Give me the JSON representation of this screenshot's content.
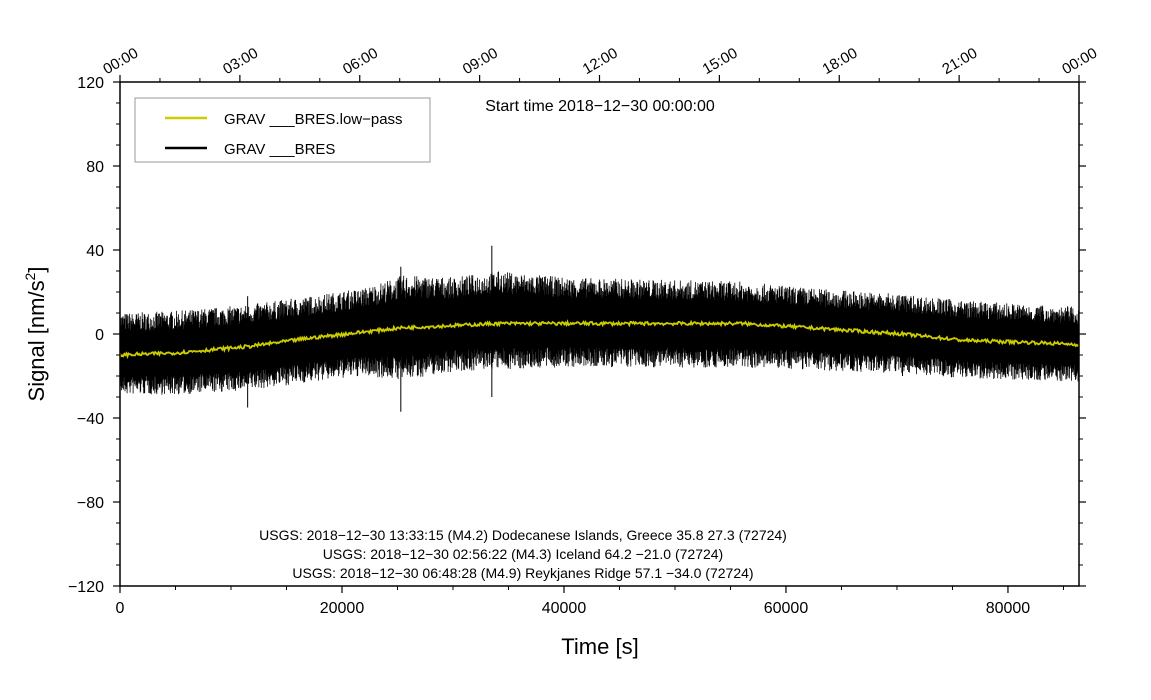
{
  "chart_data": {
    "type": "line",
    "title": "Start time 2018−12−30 00:00:00",
    "xlabel": "Time [s]",
    "ylabel_main": "Signal [nm/s",
    "ylabel_sup": "2",
    "ylabel_end": "]",
    "xlim": [
      0,
      86400
    ],
    "ylim": [
      -120,
      120
    ],
    "x_ticks": [
      0,
      20000,
      40000,
      60000,
      80000
    ],
    "x_tick_labels": [
      "0",
      "20000",
      "40000",
      "60000",
      "80000"
    ],
    "y_ticks": [
      -120,
      -80,
      -40,
      0,
      40,
      80,
      120
    ],
    "y_tick_labels": [
      "−120",
      "−80",
      "−40",
      "0",
      "40",
      "80",
      "120"
    ],
    "top_ticks_seconds": [
      0,
      10800,
      21600,
      32400,
      43200,
      54000,
      64800,
      75600,
      86400
    ],
    "top_tick_labels": [
      "00:00",
      "03:00",
      "06:00",
      "09:00",
      "12:00",
      "15:00",
      "18:00",
      "21:00",
      "00:00"
    ],
    "legend": [
      {
        "label": "GRAV ___BRES.low−pass",
        "color": "#cccc00"
      },
      {
        "label": "GRAV ___BRES",
        "color": "#000000"
      }
    ],
    "legend_position": "top-left",
    "series": [
      {
        "name": "GRAV ___BRES.low−pass",
        "color": "#cccc00",
        "x": [
          0,
          5000,
          11500,
          17000,
          22000,
          25500,
          30000,
          34000,
          40000,
          48000,
          56000,
          62000,
          70500,
          76000,
          82000,
          86400
        ],
        "y": [
          -10,
          -9,
          -6,
          -2,
          1,
          3,
          4,
          5,
          5,
          5,
          5,
          3,
          0,
          -3,
          -4,
          -5
        ]
      },
      {
        "name": "GRAV ___BRES",
        "color": "#000000",
        "x": [
          0,
          5000,
          11500,
          17000,
          22000,
          25500,
          30000,
          34000,
          40000,
          48000,
          56000,
          62000,
          70500,
          76000,
          82000,
          86400
        ],
        "y_upper": [
          10,
          11,
          14,
          18,
          22,
          28,
          27,
          30,
          27,
          26,
          25,
          22,
          19,
          16,
          14,
          13
        ],
        "y_lower": [
          -29,
          -29,
          -27,
          -23,
          -20,
          -22,
          -18,
          -17,
          -16,
          -16,
          -16,
          -17,
          -19,
          -21,
          -22,
          -23
        ]
      }
    ],
    "spikes": [
      {
        "x": 11500,
        "min": -35,
        "max": 18
      },
      {
        "x": 25300,
        "min": -37,
        "max": 32
      },
      {
        "x": 33500,
        "min": -30,
        "max": 42
      },
      {
        "x": 70500,
        "min": -20,
        "max": 18
      }
    ]
  },
  "annotations": [
    "USGS: 2018−12−30 13:33:15 (M4.2) Dodecanese Islands, Greece 35.8 27.3 (72724)",
    "USGS: 2018−12−30 02:56:22 (M4.3) Iceland 64.2 −21.0 (72724)",
    "USGS: 2018−12−30 06:48:28 (M4.9) Reykjanes Ridge 57.1 −34.0 (72724)"
  ]
}
